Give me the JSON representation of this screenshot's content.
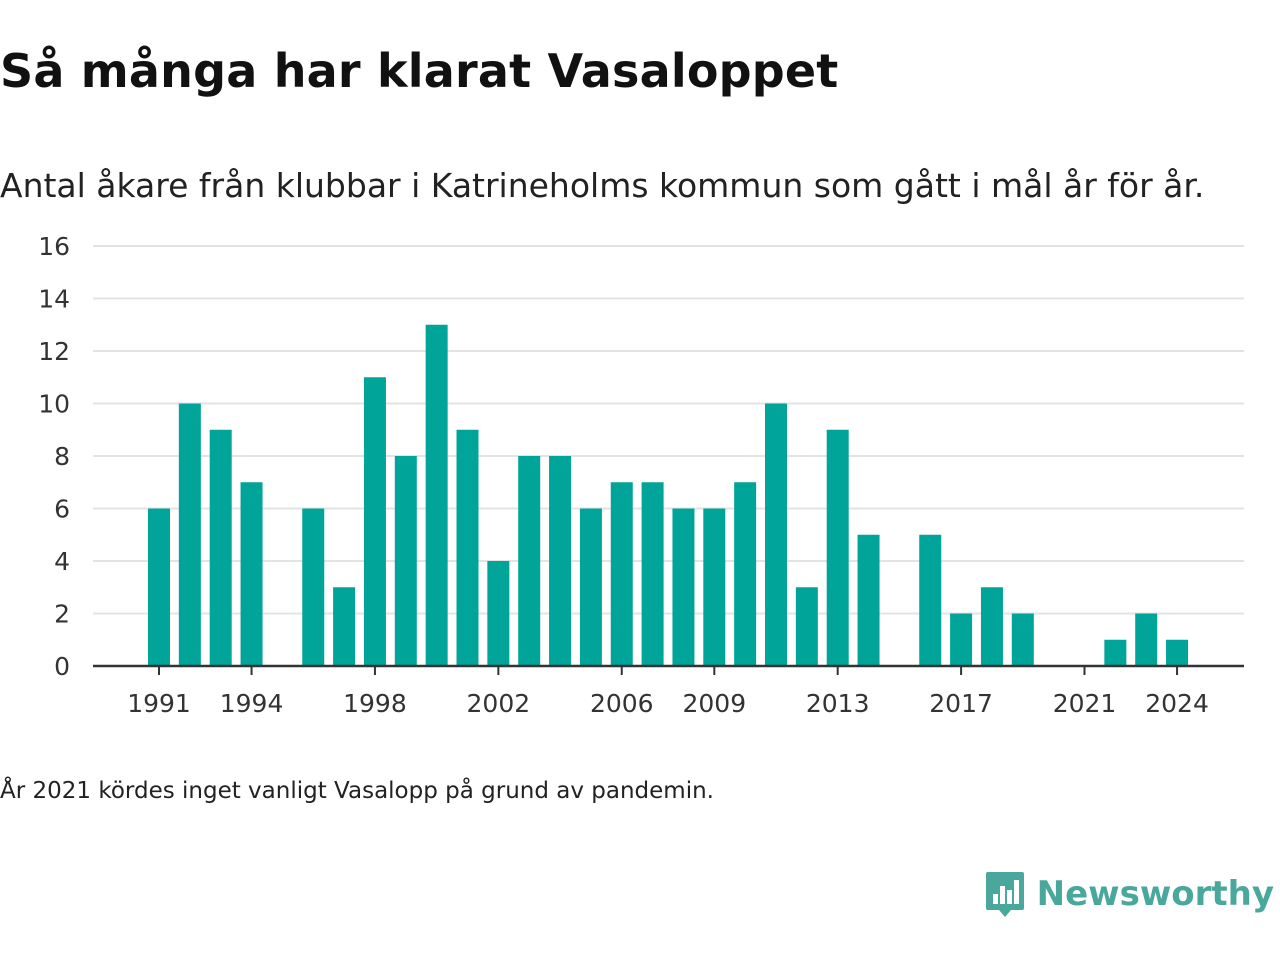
{
  "title": "Så många har klarat Vasaloppet",
  "subtitle": "Antal åkare från klubbar i Katrineholms kommun som gått i mål år för år.",
  "footnote": "År 2021 kördes inget vanligt Vasalopp på grund av pandemin.",
  "brand": {
    "name": "Newsworthy",
    "logo_icon": "bar-chart-speech-bubble-icon"
  },
  "colors": {
    "bar": "#00a499",
    "grid": "#e3e3e3",
    "axis": "#333333",
    "brand": "#4aa79b"
  },
  "chart_data": {
    "type": "bar",
    "title": "Så många har klarat Vasaloppet",
    "subtitle": "Antal åkare från klubbar i Katrineholms kommun som gått i mål år för år.",
    "xlabel": "",
    "ylabel": "",
    "ylim": [
      0,
      16
    ],
    "yticks": [
      0,
      2,
      4,
      6,
      8,
      10,
      12,
      14,
      16
    ],
    "xticks": [
      1991,
      1994,
      1998,
      2002,
      2006,
      2009,
      2013,
      2017,
      2021,
      2024
    ],
    "grid": "horizontal",
    "categories": [
      1991,
      1992,
      1993,
      1994,
      1995,
      1996,
      1997,
      1998,
      1999,
      2000,
      2001,
      2002,
      2003,
      2004,
      2005,
      2006,
      2007,
      2008,
      2009,
      2010,
      2011,
      2012,
      2013,
      2014,
      2015,
      2016,
      2017,
      2018,
      2019,
      2020,
      2021,
      2022,
      2023,
      2024
    ],
    "values": [
      6,
      10,
      9,
      7,
      0,
      6,
      3,
      11,
      8,
      13,
      9,
      4,
      8,
      8,
      6,
      7,
      7,
      6,
      6,
      7,
      10,
      3,
      9,
      5,
      0,
      5,
      2,
      3,
      2,
      0,
      0,
      1,
      2,
      1
    ]
  }
}
